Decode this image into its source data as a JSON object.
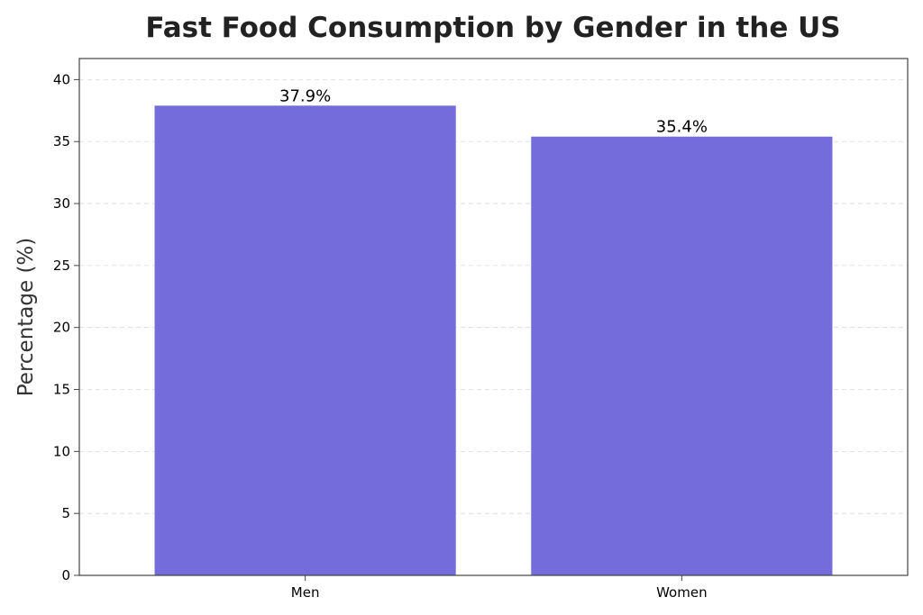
{
  "chart_data": {
    "type": "bar",
    "title": "Fast Food Consumption by Gender in the US",
    "xlabel": "",
    "ylabel": "Percentage (%)",
    "categories": [
      "Men",
      "Women"
    ],
    "values": [
      37.9,
      35.4
    ],
    "data_labels": [
      "37.9%",
      "35.4%"
    ],
    "ylim": [
      0,
      41.7
    ],
    "yticks": [
      0,
      5,
      10,
      15,
      20,
      25,
      30,
      35,
      40
    ],
    "grid": "horizontal-dashed",
    "bar_color": "#756cdb"
  }
}
